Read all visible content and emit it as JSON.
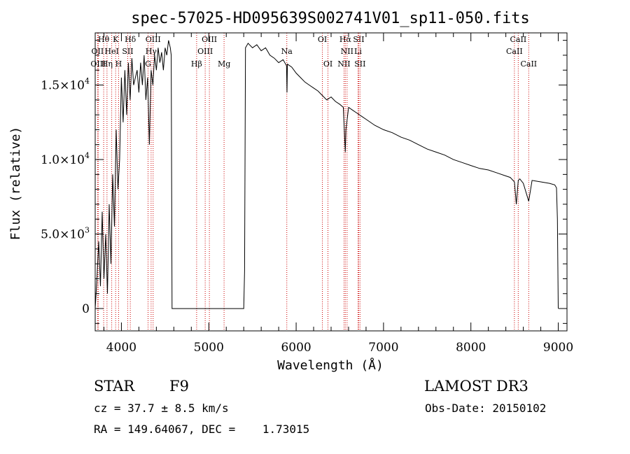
{
  "chart_data": {
    "type": "line",
    "title": "spec-57025-HD095639S002741V01_sp11-050.fits",
    "xlabel": "Wavelength (Å)",
    "ylabel": "Flux (relative)",
    "xlim": [
      3700,
      9100
    ],
    "ylim": [
      -1500,
      18500
    ],
    "x_ticks": [
      4000,
      5000,
      6000,
      7000,
      8000,
      9000
    ],
    "x_tick_labels": [
      "4000",
      "5000",
      "6000",
      "7000",
      "8000",
      "9000"
    ],
    "y_ticks": [
      0,
      5000,
      10000,
      15000
    ],
    "y_tick_labels": [
      {
        "mantissa": "0",
        "exp": ""
      },
      {
        "mantissa": "5.0×10",
        "exp": "3"
      },
      {
        "mantissa": "1.0×10",
        "exp": "4"
      },
      {
        "mantissa": "1.5×10",
        "exp": "4"
      }
    ],
    "grid": false,
    "series": [
      {
        "x": [
          3700,
          3720,
          3740,
          3760,
          3780,
          3800,
          3820,
          3840,
          3860,
          3880,
          3900,
          3920,
          3940,
          3960,
          3980,
          4000,
          4020,
          4040,
          4060,
          4080,
          4100,
          4120,
          4140,
          4160,
          4180,
          4200,
          4220,
          4240,
          4260,
          4280,
          4300,
          4320,
          4340,
          4360,
          4380,
          4400,
          4420,
          4440,
          4460,
          4480,
          4500,
          4520,
          4540,
          4560,
          4570,
          4580,
          5400,
          5410,
          5420,
          5450,
          5500,
          5550,
          5600,
          5650,
          5700,
          5750,
          5800,
          5850,
          5890,
          5895,
          5900,
          5950,
          6000,
          6050,
          6100,
          6150,
          6200,
          6250,
          6300,
          6350,
          6400,
          6450,
          6500,
          6540,
          6555,
          6563,
          6570,
          6600,
          6650,
          6700,
          6750,
          6800,
          6900,
          7000,
          7100,
          7200,
          7300,
          7400,
          7500,
          7600,
          7700,
          7800,
          7900,
          8000,
          8100,
          8200,
          8300,
          8400,
          8450,
          8498,
          8520,
          8542,
          8560,
          8600,
          8662,
          8700,
          8800,
          8900,
          8960,
          8980,
          8990,
          9000
        ],
        "y": [
          0,
          2000,
          4500,
          1500,
          6500,
          2000,
          5000,
          1000,
          7000,
          3000,
          9000,
          5500,
          12000,
          8000,
          10000,
          15500,
          12500,
          16000,
          13000,
          16500,
          14000,
          16800,
          15000,
          15500,
          16000,
          14500,
          16500,
          15000,
          17000,
          14000,
          15500,
          11000,
          16000,
          15000,
          17000,
          16000,
          17500,
          16500,
          17200,
          16000,
          17500,
          17000,
          18000,
          17500,
          17000,
          0,
          0,
          2500,
          17500,
          17800,
          17500,
          17700,
          17300,
          17500,
          17000,
          16800,
          16500,
          16700,
          16300,
          14500,
          16400,
          16200,
          15800,
          15500,
          15200,
          15000,
          14800,
          14600,
          14300,
          14000,
          14200,
          13900,
          13700,
          13500,
          11500,
          10500,
          12000,
          13500,
          13300,
          13100,
          12900,
          12700,
          12300,
          12000,
          11800,
          11500,
          11300,
          11000,
          10700,
          10500,
          10300,
          10000,
          9800,
          9600,
          9400,
          9300,
          9100,
          8900,
          8800,
          8500,
          7000,
          8600,
          8700,
          8400,
          7200,
          8600,
          8500,
          8400,
          8300,
          8100,
          6000,
          0
        ]
      }
    ],
    "lines": [
      {
        "label": "Hθ",
        "wl": 3797,
        "row": 0
      },
      {
        "label": "OII",
        "wl": 3727,
        "row": 1
      },
      {
        "label": "OIII",
        "wl": 3735,
        "row": 2
      },
      {
        "label": "K",
        "wl": 3934,
        "row": 0
      },
      {
        "label": "HeI",
        "wl": 3889,
        "row": 1
      },
      {
        "label": "Hη",
        "wl": 3835,
        "row": 2
      },
      {
        "label": "Hδ",
        "wl": 4102,
        "row": 0
      },
      {
        "label": "SII",
        "wl": 4072,
        "row": 1
      },
      {
        "label": "H",
        "wl": 3968,
        "row": 2
      },
      {
        "label": "OIII",
        "wl": 4363,
        "row": 0
      },
      {
        "label": "Hγ",
        "wl": 4340,
        "row": 1
      },
      {
        "label": "G",
        "wl": 4305,
        "row": 2
      },
      {
        "label": "OIII",
        "wl": 5007,
        "row": 0
      },
      {
        "label": "OIII",
        "wl": 4959,
        "row": 1
      },
      {
        "label": "Hβ",
        "wl": 4861,
        "row": 2
      },
      {
        "label": "Mg",
        "wl": 5175,
        "row": 2
      },
      {
        "label": "Na",
        "wl": 5893,
        "row": 1
      },
      {
        "label": "OI",
        "wl": 6300,
        "row": 0
      },
      {
        "label": "OI",
        "wl": 6364,
        "row": 2
      },
      {
        "label": "Hα",
        "wl": 6563,
        "row": 0
      },
      {
        "label": "SII",
        "wl": 6716,
        "row": 0
      },
      {
        "label": "NII",
        "wl": 6583,
        "row": 1
      },
      {
        "label": "Li",
        "wl": 6708,
        "row": 1
      },
      {
        "label": "NII",
        "wl": 6548,
        "row": 2
      },
      {
        "label": "SII",
        "wl": 6731,
        "row": 2
      },
      {
        "label": "CaII",
        "wl": 8542,
        "row": 0
      },
      {
        "label": "CaII",
        "wl": 8498,
        "row": 1
      },
      {
        "label": "CaII",
        "wl": 8662,
        "row": 2
      }
    ],
    "line_color": "#cc0000"
  },
  "info": {
    "class_label": "STAR",
    "subclass": "F9",
    "survey": "LAMOST DR3",
    "cz": "cz = 37.7 ± 8.5 km/s",
    "obs_date": "Obs-Date: 20150102",
    "radec": "RA = 149.64067, DEC =    1.73015"
  }
}
